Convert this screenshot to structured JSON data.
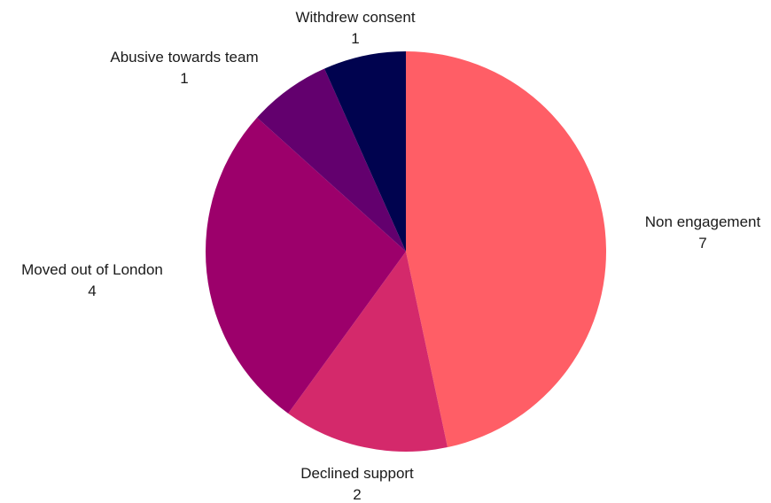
{
  "chart_data": {
    "type": "pie",
    "slices": [
      {
        "label": "Non engagement",
        "value": 7,
        "color": "#FF5E66"
      },
      {
        "label": "Declined support",
        "value": 2,
        "color": "#D4296B"
      },
      {
        "label": "Moved out of London",
        "value": 4,
        "color": "#9C006B"
      },
      {
        "label": "Abusive towards team",
        "value": 1,
        "color": "#63006E"
      },
      {
        "label": "Withdrew consent",
        "value": 1,
        "color": "#00034F"
      }
    ],
    "start_angle_deg": 0,
    "direction": "clockwise",
    "legend": "none",
    "labels": "outside"
  }
}
